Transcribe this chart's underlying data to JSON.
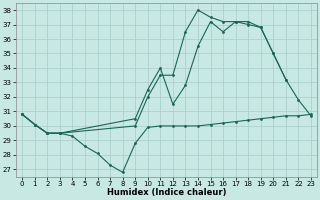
{
  "xlabel": "Humidex (Indice chaleur)",
  "background_color": "#c8e8e4",
  "grid_color": "#a8ccc8",
  "line_color": "#1a6655",
  "xlim": [
    -0.5,
    23.5
  ],
  "ylim": [
    26.5,
    38.5
  ],
  "yticks": [
    27,
    28,
    29,
    30,
    31,
    32,
    33,
    34,
    35,
    36,
    37,
    38
  ],
  "xticks": [
    0,
    1,
    2,
    3,
    4,
    5,
    6,
    7,
    8,
    9,
    10,
    11,
    12,
    13,
    14,
    15,
    16,
    17,
    18,
    19,
    20,
    21,
    22,
    23
  ],
  "line1_x": [
    0,
    1,
    2,
    3,
    4,
    5,
    6,
    7,
    8,
    9,
    10,
    11,
    12,
    13,
    14,
    15,
    16,
    17,
    18,
    19,
    20,
    21,
    22,
    23
  ],
  "line1_y": [
    30.8,
    30.1,
    29.5,
    29.5,
    29.3,
    28.6,
    28.1,
    27.3,
    26.8,
    28.8,
    29.9,
    30.0,
    30.0,
    30.0,
    30.0,
    30.1,
    30.2,
    30.3,
    30.4,
    30.5,
    30.6,
    30.7,
    30.7,
    30.8
  ],
  "line2_x": [
    0,
    1,
    2,
    3,
    9,
    10,
    11,
    12,
    13,
    14,
    15,
    16,
    17,
    18,
    19,
    20,
    21,
    22,
    23
  ],
  "line2_y": [
    30.8,
    30.1,
    29.5,
    29.5,
    30.5,
    32.5,
    34.0,
    31.5,
    32.8,
    35.5,
    37.2,
    36.5,
    37.2,
    37.0,
    36.8,
    35.0,
    33.2,
    31.8,
    30.7
  ],
  "line3_x": [
    0,
    1,
    2,
    3,
    9,
    10,
    11,
    12,
    13,
    14,
    15,
    16,
    17,
    18,
    19,
    20,
    21
  ],
  "line3_y": [
    30.8,
    30.1,
    29.5,
    29.5,
    30.0,
    32.0,
    33.5,
    33.5,
    36.5,
    38.0,
    37.5,
    37.2,
    37.2,
    37.2,
    36.8,
    35.0,
    33.2
  ]
}
